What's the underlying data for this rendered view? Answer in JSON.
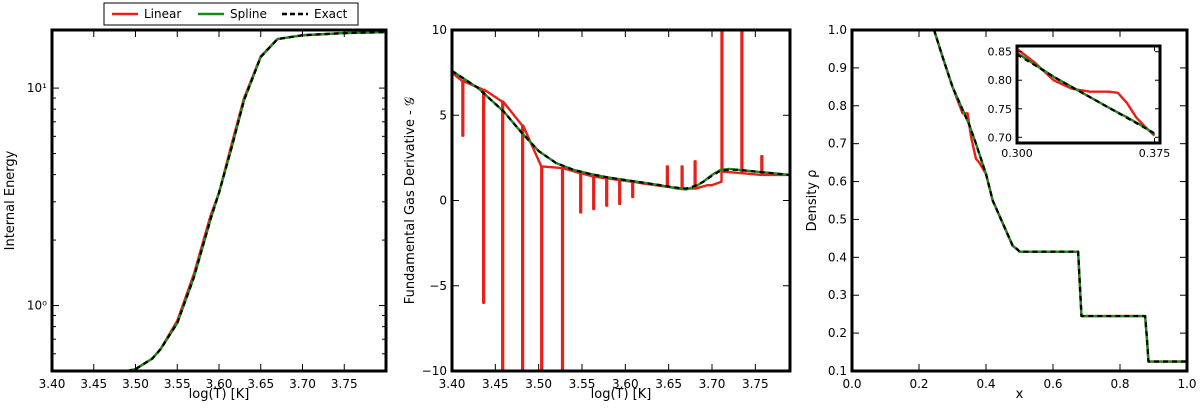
{
  "colors": {
    "linear": "#e8201a",
    "spline": "#1a8a1a",
    "exact": "#000000"
  },
  "legend": {
    "placement": "top-center",
    "entries": [
      {
        "label": "Linear",
        "color": "#e8201a",
        "style": "solid"
      },
      {
        "label": "Spline",
        "color": "#1a8a1a",
        "style": "solid"
      },
      {
        "label": "Exact",
        "color": "#000000",
        "style": "dashed"
      }
    ]
  },
  "chart_data": [
    {
      "type": "line",
      "panel": "left",
      "xlabel": "log(T) [K]",
      "ylabel": "Internal Energy",
      "yscale": "log",
      "xlim": [
        3.4,
        3.8
      ],
      "ylim": [
        0.5,
        18.5
      ],
      "xticks": [
        3.4,
        3.45,
        3.5,
        3.55,
        3.6,
        3.65,
        3.7,
        3.75
      ],
      "xtick_labels": [
        "3.40",
        "3.45",
        "3.50",
        "3.55",
        "3.60",
        "3.65",
        "3.70",
        "3.75"
      ],
      "yticks": [
        1,
        10
      ],
      "ytick_labels": [
        "10⁰",
        "10¹"
      ],
      "series": [
        {
          "name": "Linear",
          "style": "solid",
          "x": [
            3.49,
            3.5,
            3.52,
            3.53,
            3.55,
            3.57,
            3.59,
            3.6,
            3.615,
            3.63,
            3.65,
            3.67,
            3.7,
            3.75,
            3.8
          ],
          "y": [
            0.5,
            0.51,
            0.57,
            0.63,
            0.85,
            1.4,
            2.6,
            3.3,
            5.5,
            9.0,
            14.0,
            16.8,
            17.5,
            17.9,
            18.1
          ]
        },
        {
          "name": "Spline",
          "style": "solid",
          "x": [
            3.49,
            3.5,
            3.52,
            3.53,
            3.55,
            3.57,
            3.59,
            3.6,
            3.615,
            3.63,
            3.65,
            3.67,
            3.7,
            3.75,
            3.8
          ],
          "y": [
            0.5,
            0.51,
            0.57,
            0.63,
            0.83,
            1.35,
            2.5,
            3.3,
            5.3,
            8.8,
            13.9,
            16.8,
            17.5,
            17.9,
            18.1
          ]
        },
        {
          "name": "Exact",
          "style": "dashed",
          "x": [
            3.49,
            3.5,
            3.52,
            3.53,
            3.55,
            3.57,
            3.59,
            3.6,
            3.615,
            3.63,
            3.65,
            3.67,
            3.7,
            3.75,
            3.8
          ],
          "y": [
            0.5,
            0.51,
            0.57,
            0.63,
            0.83,
            1.35,
            2.5,
            3.3,
            5.3,
            8.8,
            13.9,
            16.8,
            17.5,
            17.9,
            18.1
          ]
        }
      ]
    },
    {
      "type": "line",
      "panel": "middle",
      "xlabel": "log(T) [K]",
      "ylabel": "Fundamental Gas Derivative - 𝒢",
      "xlim": [
        3.4,
        3.79
      ],
      "ylim": [
        -10,
        10
      ],
      "xticks": [
        3.4,
        3.45,
        3.5,
        3.55,
        3.6,
        3.65,
        3.7,
        3.75
      ],
      "xtick_labels": [
        "3.40",
        "3.45",
        "3.50",
        "3.55",
        "3.60",
        "3.65",
        "3.70",
        "3.75"
      ],
      "yticks": [
        -10,
        -5,
        0,
        5,
        10
      ],
      "ytick_labels": [
        "−10",
        "−5",
        "0",
        "5",
        "10"
      ],
      "series": [
        {
          "name": "Linear",
          "style": "solid",
          "x": [
            3.4,
            3.412,
            3.412,
            3.413,
            3.413,
            3.436,
            3.436,
            3.437,
            3.437,
            3.458,
            3.458,
            3.459,
            3.459,
            3.481,
            3.481,
            3.482,
            3.482,
            3.503,
            3.503,
            3.504,
            3.504,
            3.527,
            3.527,
            3.528,
            3.528,
            3.548,
            3.548,
            3.549,
            3.549,
            3.563,
            3.563,
            3.564,
            3.564,
            3.578,
            3.578,
            3.579,
            3.579,
            3.593,
            3.593,
            3.594,
            3.594,
            3.608,
            3.608,
            3.609,
            3.609,
            3.62,
            3.648,
            3.648,
            3.649,
            3.649,
            3.665,
            3.665,
            3.666,
            3.666,
            3.68,
            3.68,
            3.681,
            3.681,
            3.695,
            3.7,
            3.711,
            3.711,
            3.712,
            3.712,
            3.734,
            3.734,
            3.735,
            3.735,
            3.757,
            3.757,
            3.758,
            3.758,
            3.79
          ],
          "y": [
            7.5,
            7.0,
            3.8,
            3.8,
            7.0,
            6.5,
            -6.0,
            -6.0,
            6.5,
            5.8,
            -10,
            -10,
            5.8,
            4.4,
            -10,
            -10,
            4.4,
            2.0,
            -10,
            -10,
            2.0,
            1.9,
            -10,
            -10,
            1.9,
            1.6,
            -0.7,
            -0.7,
            1.6,
            1.4,
            -0.5,
            -0.5,
            1.4,
            1.3,
            -0.3,
            -0.3,
            1.3,
            1.2,
            -0.2,
            -0.2,
            1.2,
            1.1,
            0.2,
            0.2,
            1.1,
            1.0,
            0.8,
            2.0,
            2.0,
            0.8,
            0.7,
            2.0,
            2.0,
            0.7,
            0.7,
            2.3,
            2.3,
            0.7,
            0.9,
            0.9,
            1.1,
            10,
            10,
            1.7,
            1.6,
            10,
            10,
            1.6,
            1.5,
            2.6,
            2.6,
            1.5,
            1.5
          ]
        },
        {
          "name": "Spline",
          "style": "solid",
          "x": [
            3.4,
            3.43,
            3.46,
            3.48,
            3.5,
            3.52,
            3.54,
            3.56,
            3.58,
            3.6,
            3.62,
            3.64,
            3.66,
            3.67,
            3.68,
            3.69,
            3.7,
            3.71,
            3.72,
            3.73,
            3.74,
            3.76,
            3.79
          ],
          "y": [
            7.6,
            6.6,
            5.2,
            4.0,
            2.9,
            2.2,
            1.8,
            1.55,
            1.35,
            1.2,
            1.05,
            0.9,
            0.7,
            0.65,
            0.8,
            1.1,
            1.5,
            1.8,
            1.85,
            1.8,
            1.75,
            1.65,
            1.5
          ]
        },
        {
          "name": "Exact",
          "style": "dashed",
          "x": [
            3.4,
            3.43,
            3.46,
            3.48,
            3.5,
            3.52,
            3.54,
            3.56,
            3.58,
            3.6,
            3.62,
            3.64,
            3.66,
            3.67,
            3.68,
            3.69,
            3.7,
            3.71,
            3.72,
            3.73,
            3.74,
            3.76,
            3.79
          ],
          "y": [
            7.6,
            6.6,
            5.2,
            4.0,
            2.9,
            2.2,
            1.8,
            1.55,
            1.35,
            1.2,
            1.05,
            0.9,
            0.75,
            0.7,
            0.85,
            1.1,
            1.45,
            1.75,
            1.8,
            1.8,
            1.75,
            1.65,
            1.5
          ]
        }
      ]
    },
    {
      "type": "line",
      "panel": "right",
      "xlabel": "x",
      "ylabel": "Density ρ",
      "xlim": [
        0.0,
        1.0
      ],
      "ylim": [
        0.1,
        1.0
      ],
      "xticks": [
        0.0,
        0.2,
        0.4,
        0.6,
        0.8,
        1.0
      ],
      "xtick_labels": [
        "0.0",
        "0.2",
        "0.4",
        "0.6",
        "0.8",
        "1.0"
      ],
      "yticks": [
        0.1,
        0.2,
        0.3,
        0.4,
        0.5,
        0.6,
        0.7,
        0.8,
        0.9,
        1.0
      ],
      "ytick_labels": [
        "0.1",
        "0.2",
        "0.3",
        "0.4",
        "0.5",
        "0.6",
        "0.7",
        "0.8",
        "0.9",
        "1.0"
      ],
      "series": [
        {
          "name": "Linear",
          "style": "solid",
          "x": [
            0.245,
            0.27,
            0.3,
            0.33,
            0.345,
            0.355,
            0.37,
            0.38,
            0.4,
            0.42,
            0.45,
            0.48,
            0.495,
            0.5,
            0.51,
            0.675,
            0.68,
            0.685,
            0.875,
            0.88,
            0.885,
            1.0
          ],
          "y": [
            1.0,
            0.93,
            0.85,
            0.78,
            0.78,
            0.72,
            0.66,
            0.65,
            0.62,
            0.55,
            0.49,
            0.43,
            0.42,
            0.415,
            0.415,
            0.415,
            0.33,
            0.245,
            0.245,
            0.19,
            0.125,
            0.125
          ]
        },
        {
          "name": "Spline",
          "style": "solid",
          "x": [
            0.245,
            0.27,
            0.3,
            0.33,
            0.35,
            0.37,
            0.4,
            0.42,
            0.45,
            0.48,
            0.495,
            0.5,
            0.51,
            0.675,
            0.68,
            0.685,
            0.875,
            0.88,
            0.885,
            1.0
          ],
          "y": [
            1.0,
            0.93,
            0.85,
            0.79,
            0.75,
            0.7,
            0.62,
            0.55,
            0.49,
            0.43,
            0.42,
            0.415,
            0.415,
            0.415,
            0.33,
            0.245,
            0.245,
            0.19,
            0.125,
            0.125
          ]
        },
        {
          "name": "Exact",
          "style": "dashed",
          "x": [
            0.245,
            0.27,
            0.3,
            0.33,
            0.35,
            0.37,
            0.4,
            0.42,
            0.45,
            0.48,
            0.495,
            0.5,
            0.51,
            0.675,
            0.68,
            0.685,
            0.875,
            0.88,
            0.885,
            1.0
          ],
          "y": [
            1.0,
            0.93,
            0.85,
            0.79,
            0.75,
            0.7,
            0.62,
            0.55,
            0.49,
            0.43,
            0.42,
            0.415,
            0.415,
            0.415,
            0.33,
            0.245,
            0.245,
            0.19,
            0.125,
            0.125
          ]
        }
      ]
    },
    {
      "type": "line",
      "panel": "inset",
      "xlabel": "",
      "ylabel": "",
      "xlim": [
        0.3,
        0.378
      ],
      "ylim": [
        0.69,
        0.86
      ],
      "xticks": [
        0.3,
        0.375
      ],
      "xtick_labels": [
        "0.300",
        "0.375"
      ],
      "yticks": [
        0.7,
        0.75,
        0.8,
        0.85
      ],
      "ytick_labels": [
        "0.70",
        "0.75",
        "0.80",
        "0.85"
      ],
      "series": [
        {
          "name": "Linear",
          "style": "solid",
          "x": [
            0.3,
            0.31,
            0.32,
            0.33,
            0.34,
            0.35,
            0.355,
            0.36,
            0.365,
            0.37,
            0.375
          ],
          "y": [
            0.855,
            0.83,
            0.8,
            0.785,
            0.78,
            0.78,
            0.778,
            0.76,
            0.735,
            0.718,
            0.703
          ]
        },
        {
          "name": "Spline",
          "style": "solid",
          "x": [
            0.3,
            0.31,
            0.32,
            0.33,
            0.34,
            0.35,
            0.36,
            0.37,
            0.375
          ],
          "y": [
            0.848,
            0.827,
            0.806,
            0.788,
            0.77,
            0.752,
            0.735,
            0.717,
            0.705
          ]
        },
        {
          "name": "Exact",
          "style": "dashed",
          "x": [
            0.3,
            0.31,
            0.32,
            0.33,
            0.34,
            0.35,
            0.36,
            0.37,
            0.375
          ],
          "y": [
            0.845,
            0.826,
            0.806,
            0.788,
            0.77,
            0.752,
            0.734,
            0.716,
            0.707
          ]
        }
      ]
    }
  ]
}
